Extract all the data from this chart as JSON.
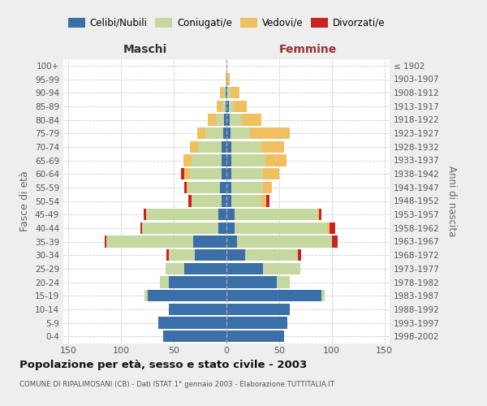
{
  "age_groups": [
    "0-4",
    "5-9",
    "10-14",
    "15-19",
    "20-24",
    "25-29",
    "30-34",
    "35-39",
    "40-44",
    "45-49",
    "50-54",
    "55-59",
    "60-64",
    "65-69",
    "70-74",
    "75-79",
    "80-84",
    "85-89",
    "90-94",
    "95-99",
    "100+"
  ],
  "birth_years": [
    "1998-2002",
    "1993-1997",
    "1988-1992",
    "1983-1987",
    "1978-1982",
    "1973-1977",
    "1968-1972",
    "1963-1967",
    "1958-1962",
    "1953-1957",
    "1948-1952",
    "1943-1947",
    "1938-1942",
    "1933-1937",
    "1928-1932",
    "1923-1927",
    "1918-1922",
    "1913-1917",
    "1908-1912",
    "1903-1907",
    "≤ 1902"
  ],
  "colors": {
    "celibi": "#3a6fa8",
    "coniugati": "#c5d8a0",
    "vedovi": "#f0c060",
    "divorziati": "#cc2222"
  },
  "maschi": {
    "celibi": [
      60,
      65,
      55,
      75,
      55,
      40,
      30,
      32,
      8,
      8,
      5,
      6,
      5,
      5,
      5,
      3,
      2,
      1,
      1,
      0,
      0
    ],
    "coniugati": [
      0,
      0,
      0,
      3,
      8,
      18,
      25,
      82,
      72,
      68,
      28,
      30,
      30,
      28,
      22,
      17,
      8,
      3,
      2,
      0,
      0
    ],
    "vedovi": [
      0,
      0,
      0,
      0,
      0,
      0,
      0,
      0,
      0,
      0,
      0,
      2,
      5,
      8,
      8,
      8,
      8,
      5,
      3,
      1,
      0
    ],
    "divorziati": [
      0,
      0,
      0,
      0,
      0,
      0,
      2,
      2,
      2,
      3,
      3,
      2,
      3,
      0,
      0,
      0,
      0,
      0,
      0,
      0,
      0
    ]
  },
  "femmine": {
    "celibi": [
      55,
      58,
      60,
      90,
      48,
      35,
      18,
      10,
      8,
      8,
      5,
      5,
      5,
      5,
      5,
      4,
      3,
      2,
      1,
      0,
      0
    ],
    "coniugati": [
      0,
      0,
      0,
      3,
      12,
      35,
      50,
      90,
      88,
      78,
      28,
      30,
      30,
      32,
      28,
      18,
      12,
      5,
      3,
      1,
      0
    ],
    "vedovi": [
      0,
      0,
      0,
      0,
      0,
      0,
      0,
      0,
      2,
      2,
      5,
      8,
      15,
      20,
      22,
      38,
      18,
      12,
      8,
      2,
      1
    ],
    "divorziati": [
      0,
      0,
      0,
      0,
      0,
      0,
      3,
      6,
      5,
      2,
      3,
      0,
      0,
      0,
      0,
      0,
      0,
      0,
      0,
      0,
      0
    ]
  },
  "title": "Popolazione per età, sesso e stato civile - 2003",
  "subtitle": "COMUNE DI RIPALIMOSANI (CB) - Dati ISTAT 1° gennaio 2003 - Elaborazione TUTTITALIA.IT",
  "xlabel_maschi": "Maschi",
  "xlabel_femmine": "Femmine",
  "ylabel_left": "Fasce di età",
  "ylabel_right": "Anni di nascita",
  "xlim": 155,
  "bg_color": "#eeeeee",
  "plot_bg_color": "#ffffff",
  "grid_color": "#cccccc",
  "maschi_color": "#333333",
  "femmine_color": "#993333",
  "legend_label_divorziati": "Divorzati/e"
}
